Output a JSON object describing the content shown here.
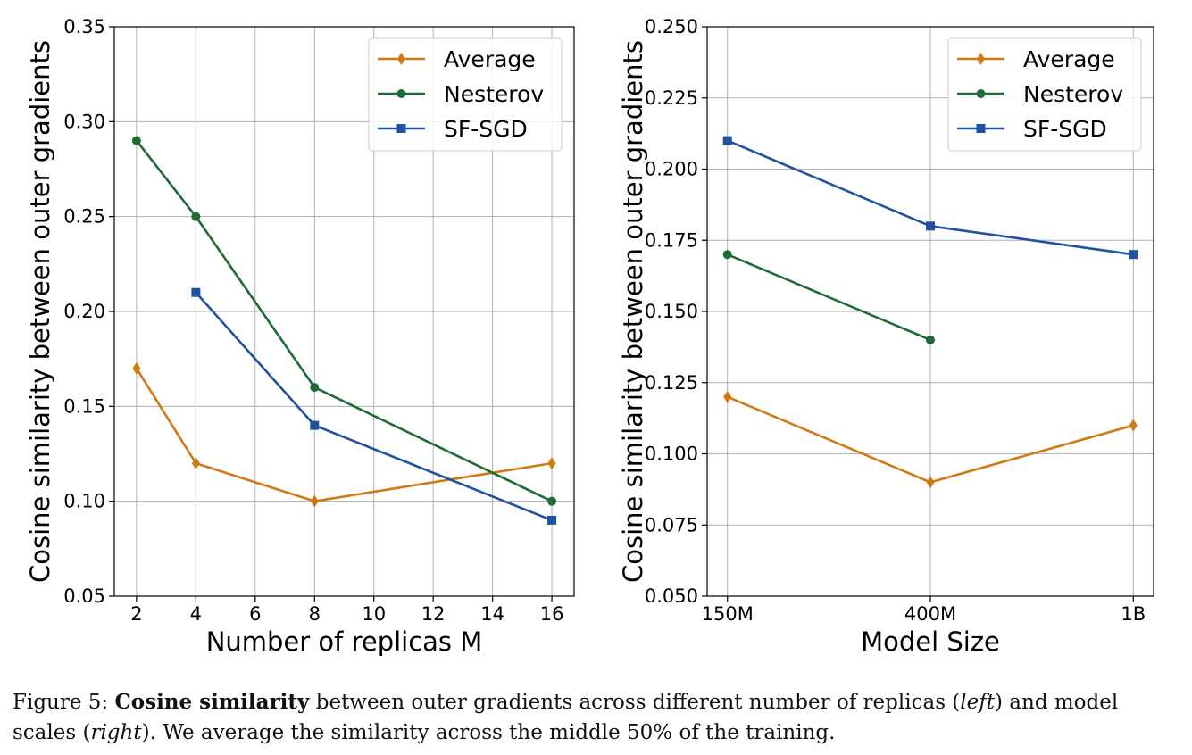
{
  "chart_data": [
    {
      "type": "line",
      "ylabel": "Cosine similarity between outer gradients",
      "xlabel": "Number of replicas M",
      "xlim": [
        1.25,
        16.75
      ],
      "ylim": [
        0.05,
        0.35
      ],
      "xticks": [
        2,
        4,
        6,
        8,
        10,
        12,
        14,
        16
      ],
      "yticks": [
        0.05,
        0.1,
        0.15,
        0.2,
        0.25,
        0.3,
        0.35
      ],
      "grid": true,
      "legend_position": "top-right",
      "series": [
        {
          "name": "Average",
          "color": "#d07a14",
          "marker": "diamond",
          "x": [
            2,
            4,
            8,
            16
          ],
          "values": [
            0.17,
            0.12,
            0.1,
            0.12
          ]
        },
        {
          "name": "Nesterov",
          "color": "#1e6b35",
          "marker": "circle",
          "x": [
            2,
            4,
            8,
            16
          ],
          "values": [
            0.29,
            0.25,
            0.16,
            0.1
          ]
        },
        {
          "name": "SF-SGD",
          "color": "#1f52a0",
          "marker": "square",
          "x": [
            4,
            8,
            16
          ],
          "values": [
            0.21,
            0.14,
            0.09
          ]
        }
      ]
    },
    {
      "type": "line",
      "ylabel": "Cosine similarity between outer gradients",
      "xlabel": "Model Size",
      "categories": [
        "150M",
        "400M",
        "1B"
      ],
      "ylim": [
        0.05,
        0.25
      ],
      "yticks": [
        0.05,
        0.075,
        0.1,
        0.125,
        0.15,
        0.175,
        0.2,
        0.225,
        0.25
      ],
      "grid": true,
      "legend_position": "top-right",
      "series": [
        {
          "name": "Average",
          "color": "#d07a14",
          "marker": "diamond",
          "values": [
            0.12,
            0.09,
            0.11
          ]
        },
        {
          "name": "Nesterov",
          "color": "#1e6b35",
          "marker": "circle",
          "values": [
            0.17,
            0.14,
            null
          ]
        },
        {
          "name": "SF-SGD",
          "color": "#1f52a0",
          "marker": "square",
          "values": [
            0.21,
            0.18,
            0.17
          ]
        }
      ]
    }
  ],
  "caption": {
    "prefix": "Figure 5: ",
    "bold": "Cosine similarity",
    "text1": " between outer gradients across different number of replicas (",
    "italic1": "left",
    "text2": ") and model scales (",
    "italic2": "right",
    "text3": "). We average the similarity across the middle 50% of the training."
  }
}
